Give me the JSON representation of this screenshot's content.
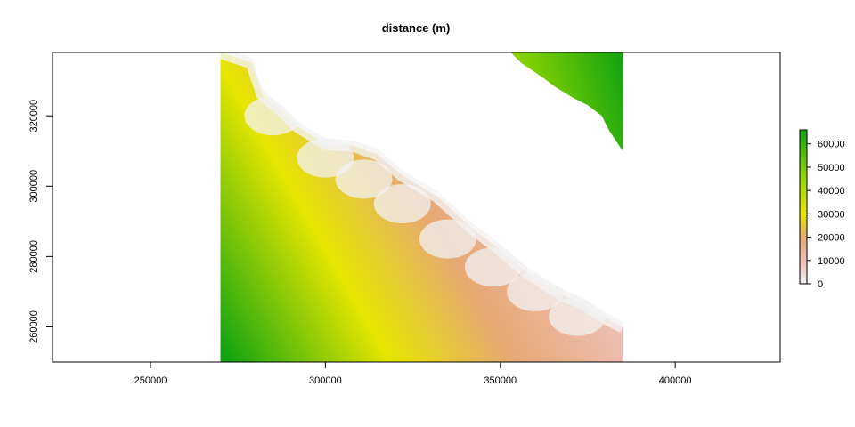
{
  "chart_data": {
    "type": "heatmap",
    "title": "distance (m)",
    "xlabel": "",
    "ylabel": "",
    "xlim": [
      222000,
      430000
    ],
    "ylim": [
      250000,
      338000
    ],
    "x_ticks": [
      250000,
      300000,
      350000,
      400000
    ],
    "y_ticks": [
      260000,
      280000,
      300000,
      320000
    ],
    "x_tick_labels": [
      "250000",
      "300000",
      "350000",
      "400000"
    ],
    "y_tick_labels": [
      "260000",
      "280000",
      "300000",
      "320000"
    ],
    "raster_extent": {
      "xmin": 270000,
      "xmax": 385000,
      "ymin": 250000,
      "ymax": 338000
    },
    "legend": {
      "placement": "right",
      "range": [
        0,
        66000
      ],
      "ticks": [
        0,
        10000,
        20000,
        30000,
        40000,
        50000,
        60000
      ],
      "tick_labels": [
        "0",
        "10000",
        "20000",
        "30000",
        "40000",
        "50000",
        "60000"
      ]
    },
    "colors": {
      "zero": "#f2f2f2",
      "low": "#eebeb3",
      "mid": "#e6a874",
      "yellow": "#e6e600",
      "high": "#11a311"
    },
    "coastline": [
      [
        270000,
        338000
      ],
      [
        279000,
        335000
      ],
      [
        282000,
        326000
      ],
      [
        288000,
        321000
      ],
      [
        292000,
        317000
      ],
      [
        300000,
        312000
      ],
      [
        308000,
        311500
      ],
      [
        315000,
        309000
      ],
      [
        322000,
        303000
      ],
      [
        332000,
        297000
      ],
      [
        342000,
        288000
      ],
      [
        350000,
        282000
      ],
      [
        357000,
        276000
      ],
      [
        363000,
        272000
      ],
      [
        368000,
        269000
      ],
      [
        373000,
        267000
      ],
      [
        381000,
        262000
      ],
      [
        385000,
        260000
      ]
    ],
    "north_coast": [
      [
        353000,
        338000
      ],
      [
        356000,
        335000
      ],
      [
        362000,
        331000
      ],
      [
        366000,
        328000
      ],
      [
        371000,
        325000
      ],
      [
        375000,
        323000
      ],
      [
        379000,
        320000
      ],
      [
        381000,
        316000
      ],
      [
        385000,
        310000
      ]
    ],
    "low_points": [
      [
        285000,
        320000
      ],
      [
        300000,
        308000
      ],
      [
        311000,
        302000
      ],
      [
        322000,
        295000
      ],
      [
        335000,
        285000
      ],
      [
        348000,
        277000
      ],
      [
        360000,
        270000
      ],
      [
        372000,
        263000
      ]
    ]
  }
}
